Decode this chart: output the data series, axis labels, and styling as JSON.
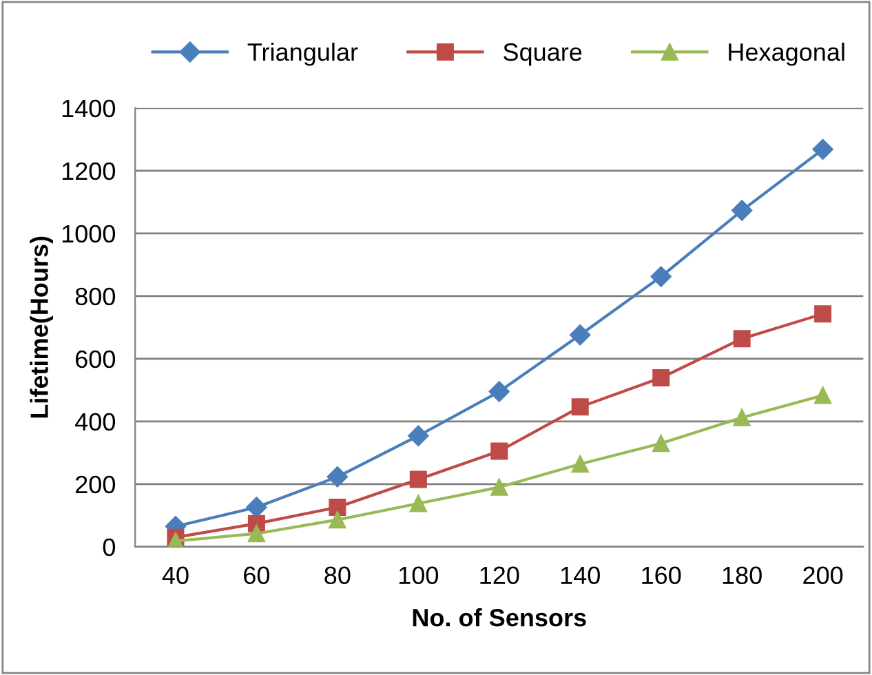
{
  "chart_data": {
    "type": "line",
    "xlabel": "No. of Sensors",
    "ylabel": "Lifetime(Hours)",
    "categories": [
      "40",
      "60",
      "80",
      "100",
      "120",
      "140",
      "160",
      "180",
      "200"
    ],
    "series": [
      {
        "name": "Triangular",
        "color": "#4a7ebb",
        "marker": "diamond",
        "values": [
          65,
          126,
          223,
          354,
          495,
          676,
          862,
          1073,
          1268
        ]
      },
      {
        "name": "Square",
        "color": "#be4b48",
        "marker": "square",
        "values": [
          30,
          74,
          126,
          215,
          305,
          446,
          539,
          664,
          743
        ]
      },
      {
        "name": "Hexagonal",
        "color": "#98b954",
        "marker": "triangle",
        "values": [
          18,
          42,
          86,
          138,
          190,
          264,
          330,
          412,
          483
        ]
      }
    ],
    "ylim": [
      0,
      1400
    ],
    "yticks": [
      0,
      200,
      400,
      600,
      800,
      1000,
      1200,
      1400
    ],
    "grid": "y",
    "legend": "top",
    "line_style": "solid"
  }
}
